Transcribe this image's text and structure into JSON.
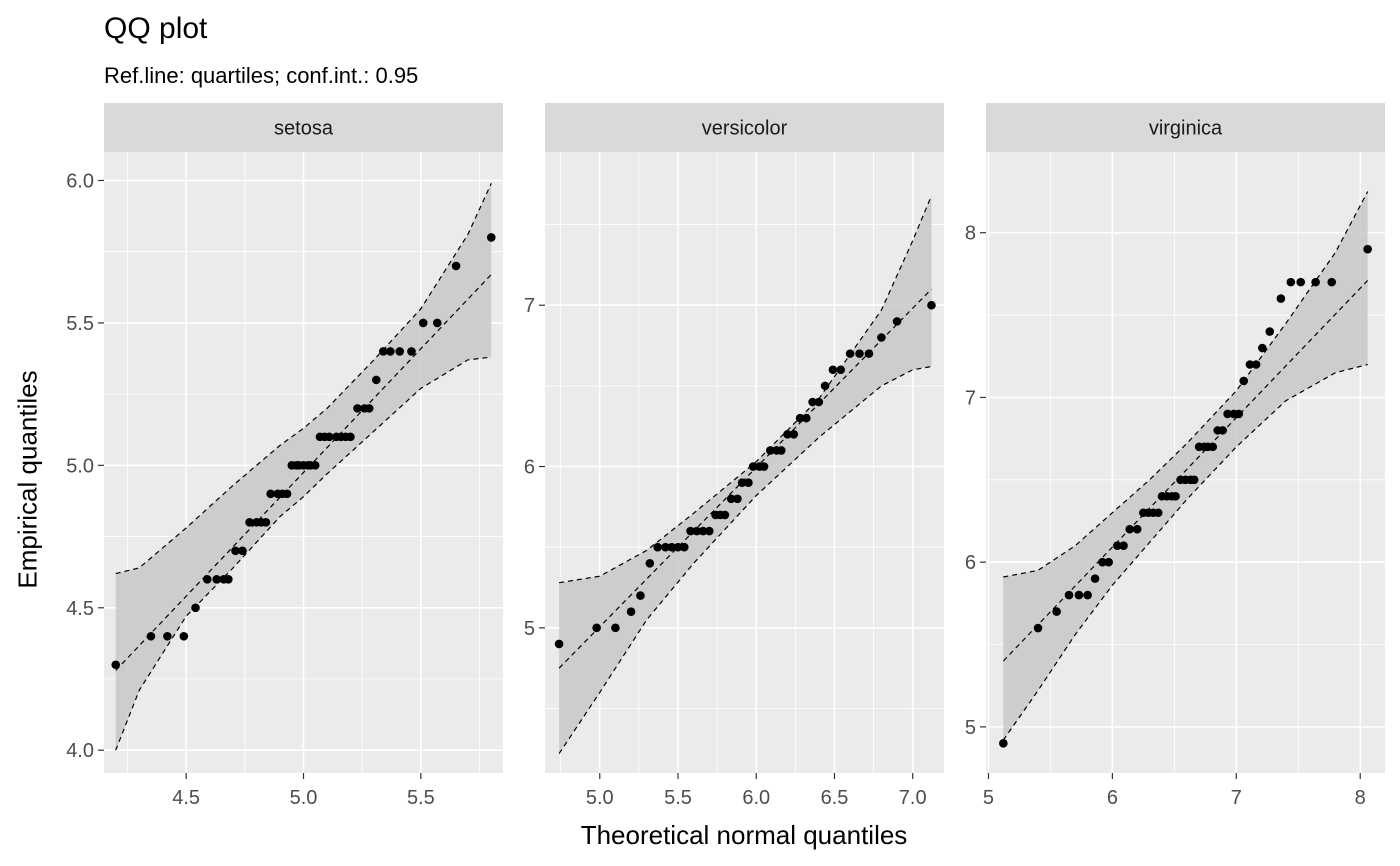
{
  "title": "QQ plot",
  "subtitle": "Ref.line: quartiles; conf.int.: 0.95",
  "colors": {
    "panel_bg": "#ebebeb",
    "strip_bg": "#d9d9d9",
    "band_fill": "#c8c8c8",
    "points": "#000000",
    "grid": "#ffffff",
    "tick_text": "#4d4d4d"
  },
  "chart_data": [
    {
      "type": "scatter",
      "facet": "setosa",
      "xlim": [
        4.15,
        5.85
      ],
      "ylim": [
        3.92,
        6.1
      ],
      "x_ticks": [
        4.5,
        5.0,
        5.5
      ],
      "x_tick_labels": [
        "4.5",
        "5.0",
        "5.5"
      ],
      "y_ticks": [
        4.0,
        4.5,
        5.0,
        5.5,
        6.0
      ],
      "y_tick_labels": [
        "4.0",
        "4.5",
        "5.0",
        "5.5",
        "6.0"
      ],
      "points": {
        "x": [
          4.2,
          4.35,
          4.42,
          4.49,
          4.54,
          4.59,
          4.63,
          4.66,
          4.68,
          4.71,
          4.74,
          4.77,
          4.8,
          4.82,
          4.84,
          4.86,
          4.89,
          4.91,
          4.93,
          4.95,
          4.97,
          4.98,
          5.0,
          5.02,
          5.03,
          5.05,
          5.07,
          5.09,
          5.11,
          5.14,
          5.16,
          5.18,
          5.2,
          5.23,
          5.26,
          5.28,
          5.31,
          5.34,
          5.37,
          5.41,
          5.46,
          5.51,
          5.57,
          5.65,
          5.8
        ],
        "y": [
          4.3,
          4.4,
          4.4,
          4.4,
          4.5,
          4.6,
          4.6,
          4.6,
          4.6,
          4.7,
          4.7,
          4.8,
          4.8,
          4.8,
          4.8,
          4.9,
          4.9,
          4.9,
          4.9,
          5.0,
          5.0,
          5.0,
          5.0,
          5.0,
          5.0,
          5.0,
          5.1,
          5.1,
          5.1,
          5.1,
          5.1,
          5.1,
          5.1,
          5.2,
          5.2,
          5.2,
          5.3,
          5.4,
          5.4,
          5.4,
          5.4,
          5.5,
          5.5,
          5.7,
          5.8
        ]
      },
      "ref_line": {
        "x": [
          4.2,
          5.8
        ],
        "y": [
          4.28,
          5.67
        ]
      },
      "band": {
        "x": [
          4.2,
          4.3,
          4.5,
          4.7,
          4.9,
          5.0,
          5.1,
          5.3,
          5.5,
          5.7,
          5.8
        ],
        "upper": [
          4.62,
          4.64,
          4.78,
          4.93,
          5.07,
          5.13,
          5.2,
          5.37,
          5.55,
          5.81,
          5.99
        ],
        "lower": [
          4.0,
          4.21,
          4.47,
          4.64,
          4.82,
          4.89,
          4.97,
          5.12,
          5.27,
          5.37,
          5.38
        ]
      }
    },
    {
      "type": "scatter",
      "facet": "versicolor",
      "xlim": [
        4.65,
        7.2
      ],
      "ylim": [
        4.1,
        7.95
      ],
      "x_ticks": [
        5.0,
        5.5,
        6.0,
        6.5,
        7.0
      ],
      "x_tick_labels": [
        "5.0",
        "5.5",
        "6.0",
        "6.5",
        "7.0"
      ],
      "y_ticks": [
        5,
        6,
        7
      ],
      "y_tick_labels": [
        "5",
        "6",
        "7"
      ],
      "points": {
        "x": [
          4.74,
          4.98,
          5.1,
          5.2,
          5.26,
          5.32,
          5.37,
          5.42,
          5.46,
          5.5,
          5.54,
          5.58,
          5.62,
          5.66,
          5.7,
          5.74,
          5.77,
          5.8,
          5.84,
          5.88,
          5.91,
          5.95,
          5.98,
          6.02,
          6.05,
          6.09,
          6.13,
          6.16,
          6.2,
          6.24,
          6.28,
          6.32,
          6.36,
          6.4,
          6.44,
          6.49,
          6.54,
          6.6,
          6.66,
          6.72,
          6.8,
          6.9,
          7.12
        ],
        "y": [
          4.9,
          5.0,
          5.0,
          5.1,
          5.2,
          5.4,
          5.5,
          5.5,
          5.5,
          5.5,
          5.5,
          5.6,
          5.6,
          5.6,
          5.6,
          5.7,
          5.7,
          5.7,
          5.8,
          5.8,
          5.9,
          5.9,
          6.0,
          6.0,
          6.0,
          6.1,
          6.1,
          6.1,
          6.2,
          6.2,
          6.3,
          6.3,
          6.4,
          6.4,
          6.5,
          6.6,
          6.6,
          6.7,
          6.7,
          6.7,
          6.8,
          6.9,
          7.0
        ]
      },
      "ref_line": {
        "x": [
          4.74,
          7.12
        ],
        "y": [
          4.75,
          7.1
        ]
      },
      "band": {
        "x": [
          4.74,
          5.0,
          5.3,
          5.6,
          6.0,
          6.4,
          6.8,
          7.0,
          7.12
        ],
        "upper": [
          5.28,
          5.32,
          5.48,
          5.71,
          6.03,
          6.42,
          6.97,
          7.4,
          7.68
        ],
        "lower": [
          4.22,
          4.6,
          5.05,
          5.4,
          5.82,
          6.18,
          6.5,
          6.6,
          6.62
        ]
      }
    },
    {
      "type": "scatter",
      "facet": "virginica",
      "xlim": [
        4.98,
        8.2
      ],
      "ylim": [
        4.72,
        8.49
      ],
      "x_ticks": [
        5,
        6,
        7,
        8
      ],
      "x_tick_labels": [
        "5",
        "6",
        "7",
        "8"
      ],
      "y_ticks": [
        5,
        6,
        7,
        8
      ],
      "y_tick_labels": [
        "5",
        "6",
        "7",
        "8"
      ],
      "points": {
        "x": [
          5.12,
          5.4,
          5.55,
          5.65,
          5.73,
          5.8,
          5.86,
          5.92,
          5.97,
          6.04,
          6.09,
          6.14,
          6.2,
          6.25,
          6.29,
          6.33,
          6.37,
          6.4,
          6.44,
          6.48,
          6.51,
          6.55,
          6.59,
          6.63,
          6.66,
          6.7,
          6.74,
          6.77,
          6.81,
          6.85,
          6.89,
          6.93,
          6.98,
          7.02,
          7.06,
          7.11,
          7.16,
          7.21,
          7.27,
          7.36,
          7.44,
          7.52,
          7.64,
          7.77,
          8.06
        ],
        "y": [
          4.9,
          5.6,
          5.7,
          5.8,
          5.8,
          5.8,
          5.9,
          6.0,
          6.0,
          6.1,
          6.1,
          6.2,
          6.2,
          6.3,
          6.3,
          6.3,
          6.3,
          6.4,
          6.4,
          6.4,
          6.4,
          6.5,
          6.5,
          6.5,
          6.5,
          6.7,
          6.7,
          6.7,
          6.7,
          6.8,
          6.8,
          6.9,
          6.9,
          6.9,
          7.1,
          7.2,
          7.2,
          7.3,
          7.4,
          7.6,
          7.7,
          7.7,
          7.7,
          7.7,
          7.9
        ]
      },
      "ref_line": {
        "x": [
          5.12,
          8.06
        ],
        "y": [
          5.4,
          7.71
        ]
      },
      "band": {
        "x": [
          5.12,
          5.4,
          5.7,
          6.0,
          6.3,
          6.6,
          7.0,
          7.4,
          7.8,
          8.06
        ],
        "upper": [
          5.91,
          5.95,
          6.1,
          6.3,
          6.5,
          6.72,
          7.04,
          7.45,
          7.88,
          8.25
        ],
        "lower": [
          4.92,
          5.22,
          5.56,
          5.86,
          6.12,
          6.38,
          6.7,
          6.98,
          7.15,
          7.2
        ]
      }
    }
  ],
  "xlabel": "Theoretical normal quantiles",
  "ylabel": "Empirical quantiles"
}
